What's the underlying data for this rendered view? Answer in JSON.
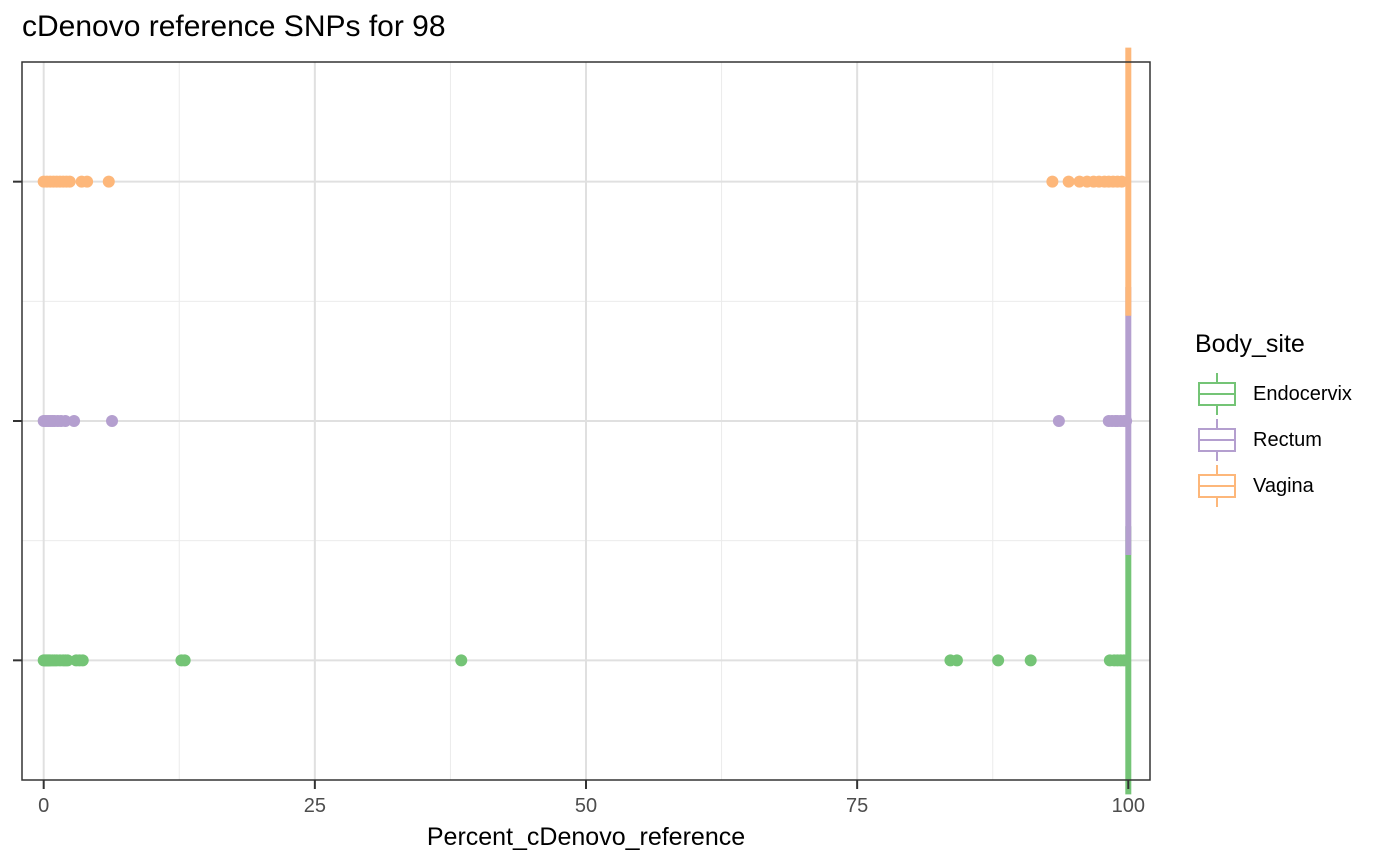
{
  "chart_data": {
    "type": "boxplot",
    "orientation": "horizontal",
    "title": "cDenovo reference SNPs for 98",
    "xlabel": "Percent_cDenovo_reference",
    "ylabel": "",
    "xlim": [
      -2,
      102
    ],
    "xticks": [
      0,
      25,
      50,
      75,
      100
    ],
    "grid": true,
    "legend_title": "Body_site",
    "legend_position": "right",
    "series": [
      {
        "name": "Endocervix",
        "color": "#74C476",
        "median": 100,
        "q1": 100,
        "q3": 100,
        "whisker_low": 100,
        "whisker_high": 100,
        "outliers": [
          0,
          0.1,
          0.2,
          0.3,
          0.4,
          0.5,
          0.6,
          0.8,
          1.0,
          1.2,
          1.5,
          1.8,
          2.0,
          2.2,
          3.0,
          3.3,
          3.6,
          12.7,
          13.0,
          38.5,
          83.6,
          84.2,
          88.0,
          91.0,
          98.3,
          98.7,
          99.0,
          99.3,
          99.6
        ]
      },
      {
        "name": "Rectum",
        "color": "#B49FCF",
        "median": 100,
        "q1": 100,
        "q3": 100,
        "whisker_low": 100,
        "whisker_high": 100,
        "outliers": [
          0,
          0.2,
          0.4,
          0.6,
          0.8,
          1.0,
          1.3,
          1.6,
          2.0,
          2.8,
          6.3,
          93.6,
          98.2,
          98.5,
          98.8,
          99.0,
          99.3,
          99.6,
          99.8
        ]
      },
      {
        "name": "Vagina",
        "color": "#FDB77A",
        "median": 100,
        "q1": 100,
        "q3": 100,
        "whisker_low": 100,
        "whisker_high": 100,
        "outliers": [
          0,
          0.3,
          0.6,
          0.9,
          1.2,
          1.5,
          1.8,
          2.1,
          2.4,
          3.5,
          4.0,
          6.0,
          93.0,
          94.5,
          95.5,
          96.2,
          96.8,
          97.3,
          97.8,
          98.2,
          98.6,
          99.0,
          99.4
        ]
      }
    ]
  }
}
